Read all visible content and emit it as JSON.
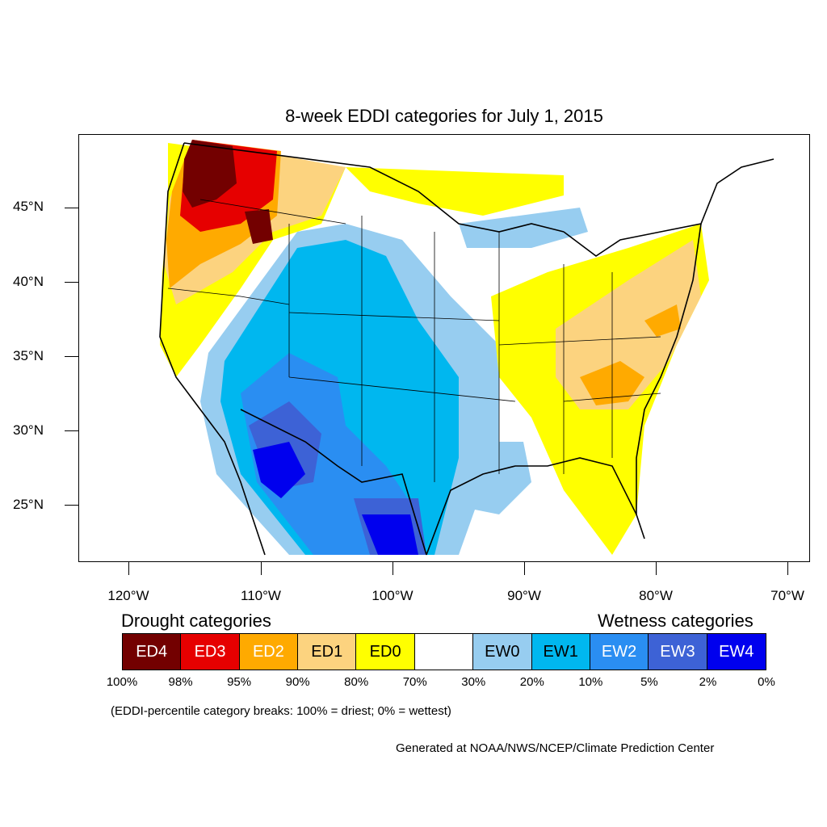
{
  "title": "8-week EDDI categories for July 1, 2015",
  "map": {
    "lat_labels": [
      "45°N",
      "40°N",
      "35°N",
      "30°N",
      "25°N"
    ],
    "lon_labels": [
      "120°W",
      "110°W",
      "100°W",
      "90°W",
      "80°W",
      "70°W"
    ],
    "lat_values": [
      45,
      40,
      35,
      30,
      25
    ],
    "lon_values": [
      -120,
      -110,
      -100,
      -90,
      -80,
      -70
    ]
  },
  "legend": {
    "drought_title": "Drought categories",
    "wetness_title": "Wetness categories",
    "categories": [
      {
        "label": "ED4",
        "color": "#730000",
        "text_color": "#ffffff"
      },
      {
        "label": "ED3",
        "color": "#e60000",
        "text_color": "#ffffff"
      },
      {
        "label": "ED2",
        "color": "#ffaa00",
        "text_color": "#ffffff"
      },
      {
        "label": "ED1",
        "color": "#fcd37f",
        "text_color": "#000000"
      },
      {
        "label": "ED0",
        "color": "#ffff00",
        "text_color": "#000000"
      },
      {
        "label": "",
        "color": "#ffffff",
        "text_color": "#000000"
      },
      {
        "label": "EW0",
        "color": "#97cdf0",
        "text_color": "#000000"
      },
      {
        "label": "EW1",
        "color": "#00b7ef",
        "text_color": "#000000"
      },
      {
        "label": "EW2",
        "color": "#2a8ef2",
        "text_color": "#ffffff"
      },
      {
        "label": "EW3",
        "color": "#3d62d6",
        "text_color": "#ffffff"
      },
      {
        "label": "EW4",
        "color": "#0000ee",
        "text_color": "#ffffff"
      }
    ],
    "percentiles": [
      "100%",
      "98%",
      "95%",
      "90%",
      "80%",
      "70%",
      "30%",
      "20%",
      "10%",
      "5%",
      "2%",
      "0%"
    ]
  },
  "note": "(EDDI-percentile category breaks: 100% = driest; 0% = wettest)",
  "credit": "Generated at NOAA/NWS/NCEP/Climate Prediction Center"
}
